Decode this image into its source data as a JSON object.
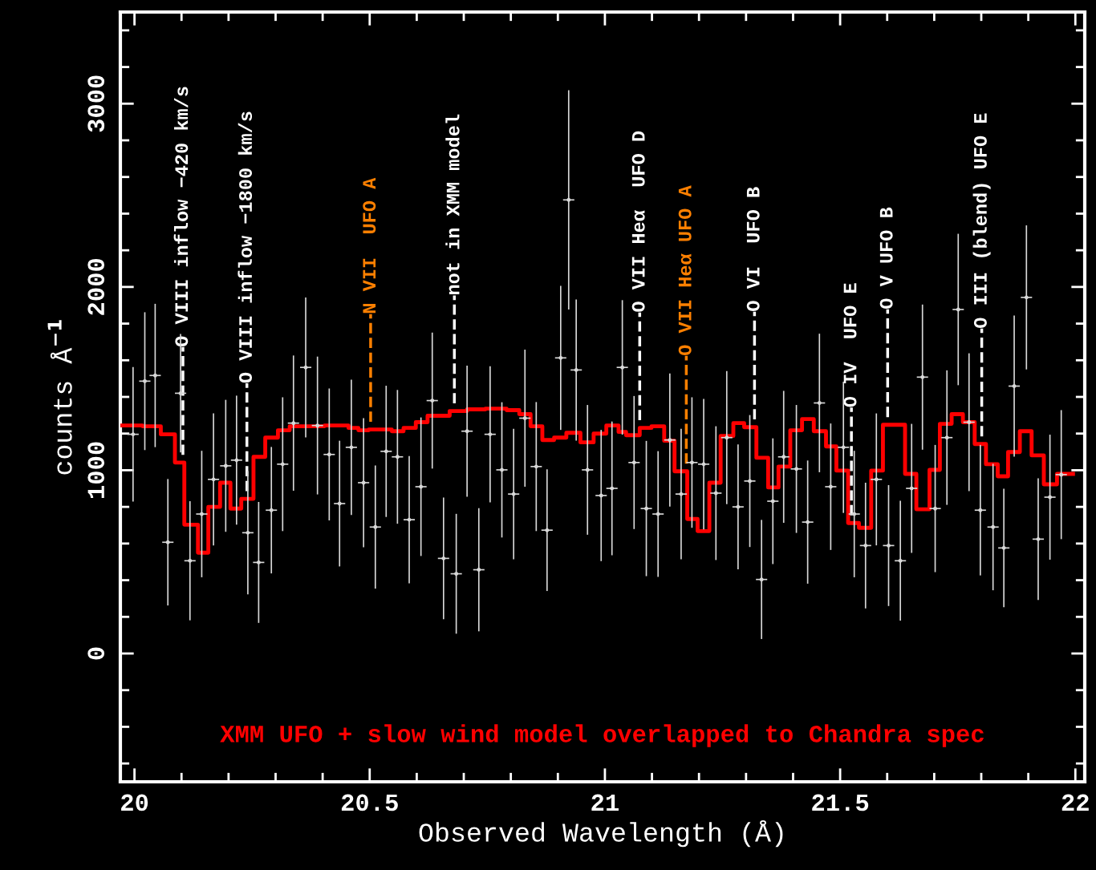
{
  "chart_data": {
    "type": "scatter",
    "xlabel": "Observed Wavelength (Å)",
    "ylabel": "counts Å$^{−1}$",
    "xlim": [
      19.97,
      22.02
    ],
    "ylim": [
      -700,
      3500
    ],
    "xticks": [
      {
        "value": 20.0,
        "label": "20"
      },
      {
        "value": 20.1,
        "label": null
      },
      {
        "value": 20.2,
        "label": null
      },
      {
        "value": 20.3,
        "label": null
      },
      {
        "value": 20.4,
        "label": null
      },
      20.5,
      {
        "value": 20.6,
        "label": null
      },
      {
        "value": 20.7,
        "label": null
      },
      {
        "value": 20.8,
        "label": null
      },
      {
        "value": 20.9,
        "label": null
      },
      21,
      {
        "value": 21.1,
        "label": null
      },
      {
        "value": 21.2,
        "label": null
      },
      {
        "value": 21.3,
        "label": null
      },
      {
        "value": 21.4,
        "label": null
      },
      21.5,
      {
        "value": 21.6,
        "label": null
      },
      {
        "value": 21.7,
        "label": null
      },
      {
        "value": 21.8,
        "label": null
      },
      {
        "value": 21.9,
        "label": null
      },
      22
    ],
    "yticks": [
      {
        "value": -600,
        "label": null
      },
      {
        "value": -400,
        "label": null
      },
      {
        "value": -200,
        "label": null
      },
      0,
      {
        "value": 200,
        "label": null
      },
      {
        "value": 400,
        "label": null
      },
      {
        "value": 600,
        "label": null
      },
      {
        "value": 800,
        "label": null
      },
      1000,
      {
        "value": 1200,
        "label": null
      },
      {
        "value": 1400,
        "label": null
      },
      {
        "value": 1600,
        "label": null
      },
      {
        "value": 1800,
        "label": null
      },
      2000,
      {
        "value": 2200,
        "label": null
      },
      {
        "value": 2400,
        "label": null
      },
      {
        "value": 2600,
        "label": null
      },
      {
        "value": 2800,
        "label": null
      },
      3000,
      {
        "value": 3200,
        "label": null
      },
      {
        "value": 3400,
        "label": null
      }
    ],
    "grid": false,
    "legend": false,
    "series": [
      {
        "color": "#d8d8d8",
        "x": [
          19.997,
          20.022,
          20.044,
          20.071,
          20.098,
          20.118,
          20.143,
          20.168,
          20.194,
          20.217,
          20.241,
          20.264,
          20.291,
          20.315,
          20.338,
          20.364,
          20.389,
          20.414,
          20.436,
          20.461,
          20.487,
          20.512,
          20.535,
          20.559,
          20.584,
          20.609,
          20.633,
          20.657,
          20.684,
          20.707,
          20.732,
          20.756,
          20.781,
          20.806,
          20.83,
          20.854,
          20.877,
          20.906,
          20.923,
          20.939,
          20.963,
          20.992,
          21.015,
          21.037,
          21.062,
          21.088,
          21.113,
          21.138,
          21.162,
          21.185,
          21.21,
          21.236,
          21.259,
          21.283,
          21.308,
          21.333,
          21.357,
          21.38,
          21.407,
          21.431,
          21.456,
          21.48,
          21.507,
          21.53,
          21.554,
          21.577,
          21.603,
          21.628,
          21.652,
          21.675,
          21.702,
          21.727,
          21.751,
          21.774,
          21.798,
          21.825,
          21.848,
          21.87,
          21.896,
          21.921,
          21.946,
          21.97
        ],
        "values": [
          1196,
          1486,
          1517,
          607,
          1420,
          506,
          761,
          950,
          1024,
          1055,
          659,
          497,
          782,
          1033,
          1257,
          1561,
          1244,
          1086,
          818,
          1125,
          932,
          690,
          1103,
          1073,
          730,
          910,
          1380,
          519,
          435,
          1213,
          457,
          1196,
          1002,
          870,
          1284,
          1020,
          673,
          1613,
          2475,
          1547,
          1002,
          862,
          901,
          1561,
          1042,
          791,
          761,
          1165,
          870,
          1042,
          1033,
          875,
          1178,
          800,
          941,
          404,
          831,
          1073,
          1007,
          717,
          1367,
          910,
          1125,
          761,
          589,
          950,
          589,
          506,
          901,
          1508,
          791,
          1178,
          1877,
          1262,
          782,
          690,
          576,
          1459,
          1943,
          624,
          853,
          976
        ],
        "errors": [
          367,
          376,
          391,
          345,
          323,
          325,
          345,
          360,
          360,
          352,
          336,
          330,
          345,
          365,
          369,
          382,
          376,
          360,
          343,
          369,
          352,
          336,
          358,
          365,
          347,
          378,
          371,
          332,
          327,
          358,
          336,
          371,
          369,
          356,
          374,
          352,
          332,
          393,
          598,
          385,
          354,
          358,
          365,
          367,
          363,
          369,
          343,
          363,
          356,
          356,
          356,
          365,
          363,
          341,
          360,
          325,
          343,
          360,
          349,
          336,
          378,
          345,
          358,
          345,
          343,
          360,
          330,
          327,
          352,
          396,
          347,
          367,
          413,
          376,
          356,
          345,
          323,
          385,
          393,
          332,
          341,
          352
        ],
        "xerrors": [
          0.012,
          0.012,
          0.012,
          0.012,
          0.012,
          0.012,
          0.012,
          0.012,
          0.012,
          0.012,
          0.012,
          0.012,
          0.012,
          0.012,
          0.012,
          0.012,
          0.012,
          0.012,
          0.012,
          0.012,
          0.012,
          0.012,
          0.012,
          0.012,
          0.012,
          0.012,
          0.012,
          0.012,
          0.012,
          0.012,
          0.012,
          0.012,
          0.012,
          0.012,
          0.012,
          0.012,
          0.012,
          0.012,
          0.012,
          0.012,
          0.012,
          0.012,
          0.012,
          0.012,
          0.012,
          0.012,
          0.012,
          0.012,
          0.012,
          0.012,
          0.012,
          0.012,
          0.012,
          0.012,
          0.012,
          0.012,
          0.012,
          0.012,
          0.012,
          0.012,
          0.012,
          0.012,
          0.012,
          0.012,
          0.012,
          0.012,
          0.012,
          0.012,
          0.012,
          0.012,
          0.012,
          0.012,
          0.012,
          0.012,
          0.012,
          0.012,
          0.012,
          0.012,
          0.012,
          0.012,
          0.012,
          0.012
        ]
      },
      {
        "type": "step",
        "color": "#ff0000",
        "x": [
          19.971,
          20.017,
          20.056,
          20.086,
          20.106,
          20.135,
          20.157,
          20.182,
          20.204,
          20.227,
          20.253,
          20.278,
          20.305,
          20.33,
          20.404,
          20.455,
          20.476,
          20.498,
          20.547,
          20.572,
          20.598,
          20.623,
          20.67,
          20.707,
          20.746,
          20.791,
          20.818,
          20.842,
          20.867,
          20.892,
          20.918,
          20.948,
          20.976,
          21.003,
          21.029,
          21.045,
          21.074,
          21.099,
          21.126,
          21.148,
          21.175,
          21.197,
          21.222,
          21.246,
          21.273,
          21.296,
          21.322,
          21.347,
          21.369,
          21.394,
          21.419,
          21.444,
          21.47,
          21.492,
          21.517,
          21.54,
          21.566,
          21.591,
          21.638,
          21.662,
          21.69,
          21.712,
          21.737,
          21.761,
          21.786,
          21.81,
          21.835,
          21.857,
          21.882,
          21.907,
          21.933,
          21.961,
          21.995
        ],
        "values": [
          1244,
          1240,
          1196,
          1042,
          703,
          550,
          800,
          932,
          791,
          844,
          1073,
          1178,
          1218,
          1240,
          1244,
          1231,
          1218,
          1222,
          1213,
          1231,
          1262,
          1297,
          1323,
          1332,
          1336,
          1328,
          1306,
          1240,
          1165,
          1178,
          1204,
          1152,
          1200,
          1244,
          1209,
          1191,
          1231,
          1240,
          1161,
          994,
          734,
          668,
          932,
          1187,
          1257,
          1235,
          1068,
          906,
          1020,
          1218,
          1279,
          1213,
          1130,
          998,
          712,
          686,
          998,
          1248,
          980,
          787,
          1002,
          1253,
          1306,
          1262,
          1143,
          1033,
          967,
          1099,
          1213,
          1081,
          923,
          980,
          980
        ]
      }
    ],
    "ref_lines": [
      {
        "axis": "x",
        "value": 20.103,
        "label": "O VIII inflow −420 km/s",
        "color": "#ffffff",
        "line_style": "dashed"
      },
      {
        "axis": "x",
        "value": 20.239,
        "label": "O VIII inflow −1800 km/s",
        "color": "#ffffff",
        "line_style": "dashed"
      },
      {
        "axis": "x",
        "value": 20.502,
        "label": "N VII  UFO A",
        "color": "#ff8000",
        "line_style": "dashed"
      },
      {
        "axis": "x",
        "value": 20.68,
        "label": "not in XMM model",
        "color": "#ffffff",
        "line_style": "dashed"
      },
      {
        "axis": "x",
        "value": 21.074,
        "label": "O VII Heα  UFO D",
        "color": "#ffffff",
        "line_style": "dashed"
      },
      {
        "axis": "x",
        "value": 21.173,
        "label": "O VII Heα UFO A",
        "color": "#ff8000",
        "line_style": "dashed"
      },
      {
        "axis": "x",
        "value": 21.318,
        "label": "O VI  UFO B",
        "color": "#ffffff",
        "line_style": "dashed"
      },
      {
        "axis": "x",
        "value": 21.524,
        "label": "O IV  UFO E",
        "color": "#ffffff",
        "line_style": "dashed"
      },
      {
        "axis": "x",
        "value": 21.601,
        "label": "O V UFO B",
        "color": "#ffffff",
        "line_style": "dashed"
      },
      {
        "axis": "x",
        "value": 21.801,
        "label": "O III (blend) UFO E",
        "color": "#ffffff",
        "line_style": "dashed"
      }
    ],
    "annotations": [
      "XMM UFO + slow wind model overlapped to Chandra spec"
    ]
  }
}
